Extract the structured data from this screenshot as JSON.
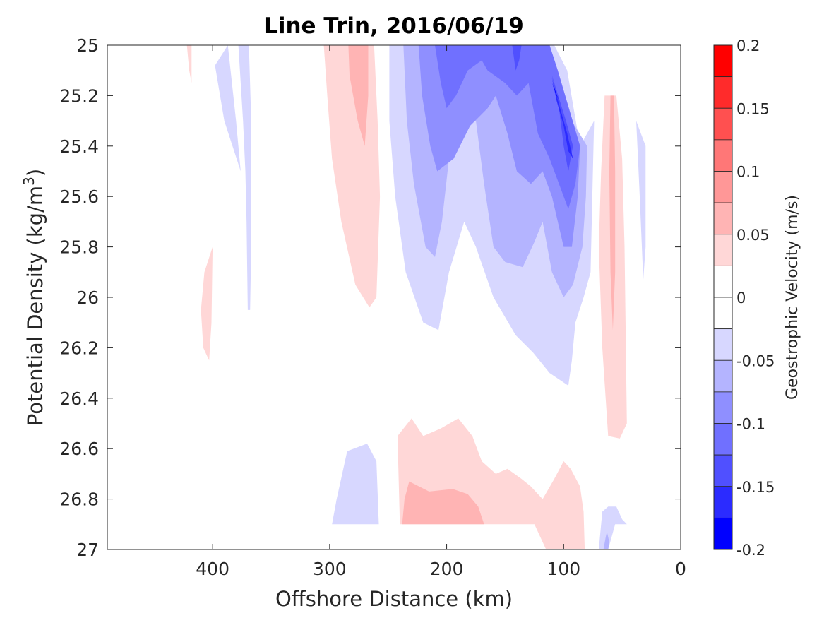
{
  "chart_data": {
    "type": "contour",
    "title": "Line Trin, 2016/06/19",
    "xlabel": "Offshore Distance (km)",
    "ylabel": "Potential Density (kg/m",
    "ylabel_sup": "3",
    "ylabel_close": ")",
    "xlim": [
      490,
      0
    ],
    "x_reversed": true,
    "ylim": [
      25,
      27
    ],
    "y_reversed": true,
    "xticks": [
      400,
      300,
      200,
      100,
      0
    ],
    "xtick_labels": [
      "400",
      "300",
      "200",
      "100",
      "0"
    ],
    "yticks": [
      25,
      25.2,
      25.4,
      25.6,
      25.8,
      26,
      26.2,
      26.4,
      26.6,
      26.8,
      27
    ],
    "ytick_labels": [
      "25",
      "25.2",
      "25.4",
      "25.6",
      "25.8",
      "26",
      "26.2",
      "26.4",
      "26.6",
      "26.8",
      "27"
    ],
    "colorbar": {
      "label": "Geostrophic Velocity (m/s)",
      "clim": [
        -0.2,
        0.2
      ],
      "ticks": [
        0.2,
        0.15,
        0.1,
        0.05,
        0,
        -0.05,
        -0.1,
        -0.15,
        -0.2
      ],
      "tick_labels": [
        "0.2",
        "0.15",
        "0.1",
        "0.05",
        "0",
        "-0.05",
        "-0.1",
        "-0.15",
        "-0.2"
      ],
      "levels": [
        {
          "from": 0.175,
          "to": 0.2,
          "color": "#ff0000"
        },
        {
          "from": 0.15,
          "to": 0.175,
          "color": "#ff2b2b"
        },
        {
          "from": 0.125,
          "to": 0.15,
          "color": "#ff5050"
        },
        {
          "from": 0.1,
          "to": 0.125,
          "color": "#ff7777"
        },
        {
          "from": 0.075,
          "to": 0.1,
          "color": "#ff9797"
        },
        {
          "from": 0.05,
          "to": 0.075,
          "color": "#ffb4b4"
        },
        {
          "from": 0.025,
          "to": 0.05,
          "color": "#ffd7d7"
        },
        {
          "from": 0,
          "to": 0.025,
          "color": "#ffffff"
        },
        {
          "from": -0.025,
          "to": 0,
          "color": "#ffffff"
        },
        {
          "from": -0.05,
          "to": -0.025,
          "color": "#d7d7ff"
        },
        {
          "from": -0.075,
          "to": -0.05,
          "color": "#b4b4ff"
        },
        {
          "from": -0.1,
          "to": -0.075,
          "color": "#8f8fff"
        },
        {
          "from": -0.125,
          "to": -0.1,
          "color": "#7070ff"
        },
        {
          "from": -0.15,
          "to": -0.125,
          "color": "#5050ff"
        },
        {
          "from": -0.175,
          "to": -0.15,
          "color": "#2b2bff"
        },
        {
          "from": -0.2,
          "to": -0.175,
          "color": "#0000ff"
        }
      ]
    },
    "regions": [
      {
        "level": 0.0375,
        "points": [
          [
            422,
            25
          ],
          [
            420,
            25.1
          ],
          [
            418,
            25.15
          ],
          [
            418,
            25
          ]
        ]
      },
      {
        "level": -0.0375,
        "points": [
          [
            387,
            25
          ],
          [
            378,
            25
          ],
          [
            374,
            25.3
          ],
          [
            372,
            25.5
          ],
          [
            371,
            25.7
          ],
          [
            370,
            26.05
          ],
          [
            368,
            26.05
          ],
          [
            367,
            25.8
          ],
          [
            367,
            25.3
          ],
          [
            369,
            25.0
          ]
        ]
      },
      {
        "level": -0.0375,
        "points": [
          [
            398,
            25.08
          ],
          [
            387,
            25.0
          ],
          [
            380,
            25.3
          ],
          [
            376,
            25.5
          ],
          [
            390,
            25.3
          ]
        ]
      },
      {
        "level": 0.0375,
        "points": [
          [
            400,
            25.8
          ],
          [
            407,
            25.9
          ],
          [
            410,
            26.05
          ],
          [
            408,
            26.2
          ],
          [
            403,
            26.25
          ],
          [
            401,
            26.1
          ]
        ]
      },
      {
        "level": 0.0375,
        "points": [
          [
            305,
            25
          ],
          [
            262,
            25
          ],
          [
            259,
            25.3
          ],
          [
            257,
            25.6
          ],
          [
            260,
            26.0
          ],
          [
            266,
            26.04
          ],
          [
            278,
            25.95
          ],
          [
            290,
            25.7
          ],
          [
            298,
            25.45
          ],
          [
            302,
            25.2
          ]
        ]
      },
      {
        "level": 0.0625,
        "points": [
          [
            284,
            25
          ],
          [
            267,
            25
          ],
          [
            267,
            25.2
          ],
          [
            270,
            25.4
          ],
          [
            276,
            25.3
          ],
          [
            283,
            25.12
          ]
        ]
      },
      {
        "level": -0.0375,
        "points": [
          [
            249,
            25
          ],
          [
            249,
            25.3
          ],
          [
            244,
            25.6
          ],
          [
            235,
            25.9
          ],
          [
            220,
            26.1
          ],
          [
            207,
            26.13
          ],
          [
            198,
            25.9
          ],
          [
            185,
            25.7
          ],
          [
            175,
            25.8
          ],
          [
            160,
            26.0
          ],
          [
            141,
            26.15
          ],
          [
            126,
            26.22
          ],
          [
            112,
            26.3
          ],
          [
            96,
            26.35
          ],
          [
            93,
            26.25
          ],
          [
            90,
            26.1
          ],
          [
            83,
            26.0
          ],
          [
            77,
            25.9
          ],
          [
            75,
            25.5
          ],
          [
            74,
            25.3
          ],
          [
            86,
            25.4
          ],
          [
            97,
            25.1
          ],
          [
            108,
            25.0
          ]
        ]
      },
      {
        "level": -0.0625,
        "points": [
          [
            237,
            25
          ],
          [
            234,
            25.3
          ],
          [
            228,
            25.55
          ],
          [
            218,
            25.8
          ],
          [
            210,
            25.84
          ],
          [
            204,
            25.7
          ],
          [
            198,
            25.45
          ],
          [
            188,
            25.3
          ],
          [
            175,
            25.3
          ],
          [
            168,
            25.55
          ],
          [
            160,
            25.8
          ],
          [
            150,
            25.86
          ],
          [
            135,
            25.88
          ],
          [
            125,
            25.78
          ],
          [
            118,
            25.7
          ],
          [
            110,
            25.9
          ],
          [
            100,
            26.0
          ],
          [
            92,
            25.95
          ],
          [
            84,
            25.8
          ],
          [
            81,
            25.6
          ],
          [
            80,
            25.4
          ],
          [
            93,
            25.3
          ],
          [
            108,
            25.1
          ],
          [
            116,
            25.0
          ]
        ]
      },
      {
        "level": -0.0875,
        "points": [
          [
            224,
            25
          ],
          [
            221,
            25.2
          ],
          [
            214,
            25.4
          ],
          [
            208,
            25.5
          ],
          [
            194,
            25.45
          ],
          [
            180,
            25.32
          ],
          [
            165,
            25.25
          ],
          [
            158,
            25.2
          ],
          [
            148,
            25.35
          ],
          [
            140,
            25.5
          ],
          [
            128,
            25.55
          ],
          [
            118,
            25.5
          ],
          [
            110,
            25.6
          ],
          [
            100,
            25.8
          ],
          [
            93,
            25.8
          ],
          [
            88,
            25.6
          ],
          [
            86,
            25.4
          ],
          [
            105,
            25.15
          ],
          [
            112,
            25.0
          ]
        ]
      },
      {
        "level": -0.1125,
        "points": [
          [
            210,
            25
          ],
          [
            205,
            25.15
          ],
          [
            200,
            25.25
          ],
          [
            192,
            25.2
          ],
          [
            182,
            25.1
          ],
          [
            170,
            25.06
          ],
          [
            165,
            25.1
          ],
          [
            150,
            25.15
          ],
          [
            140,
            25.2
          ],
          [
            130,
            25.15
          ],
          [
            122,
            25.35
          ],
          [
            112,
            25.45
          ],
          [
            104,
            25.55
          ],
          [
            96,
            25.65
          ],
          [
            90,
            25.55
          ],
          [
            86,
            25.4
          ],
          [
            105,
            25.1
          ],
          [
            112,
            25.0
          ]
        ]
      },
      {
        "level": -0.1375,
        "points": [
          [
            144,
            25
          ],
          [
            141,
            25.1
          ],
          [
            138,
            25.06
          ],
          [
            136,
            25
          ]
        ]
      },
      {
        "level": -0.1375,
        "points": [
          [
            110,
            25.12
          ],
          [
            104,
            25.25
          ],
          [
            100,
            25.4
          ],
          [
            96,
            25.5
          ],
          [
            92,
            25.4
          ],
          [
            98,
            25.3
          ]
        ]
      },
      {
        "level": -0.1625,
        "points": [
          [
            110,
            25.13
          ],
          [
            106,
            25.22
          ],
          [
            100,
            25.32
          ],
          [
            96,
            25.42
          ],
          [
            92,
            25.45
          ],
          [
            97,
            25.35
          ],
          [
            103,
            25.25
          ]
        ]
      },
      {
        "level": -0.1875,
        "points": [
          [
            110,
            25.15
          ],
          [
            106,
            25.2
          ],
          [
            104,
            25.22
          ],
          [
            108,
            25.17
          ]
        ]
      },
      {
        "level": 0.0375,
        "points": [
          [
            65,
            25.2
          ],
          [
            55,
            25.2
          ],
          [
            50,
            25.45
          ],
          [
            48,
            25.8
          ],
          [
            46,
            26.5
          ],
          [
            52,
            26.56
          ],
          [
            62,
            26.55
          ],
          [
            67,
            26.2
          ],
          [
            70,
            25.8
          ],
          [
            68,
            25.5
          ]
        ]
      },
      {
        "level": 0.0625,
        "points": [
          [
            60,
            25.2
          ],
          [
            57,
            25.2
          ],
          [
            56,
            25.5
          ],
          [
            56,
            25.9
          ],
          [
            58,
            26.13
          ],
          [
            60,
            25.9
          ],
          [
            61,
            25.5
          ]
        ]
      },
      {
        "level": -0.0375,
        "points": [
          [
            38,
            25.3
          ],
          [
            30,
            25.4
          ],
          [
            30,
            25.8
          ],
          [
            32,
            25.93
          ],
          [
            35,
            25.6
          ],
          [
            37,
            25.4
          ]
        ]
      },
      {
        "level": 0.0375,
        "points": [
          [
            242,
            26.55
          ],
          [
            230,
            26.48
          ],
          [
            220,
            26.55
          ],
          [
            205,
            26.52
          ],
          [
            190,
            26.48
          ],
          [
            178,
            26.55
          ],
          [
            170,
            26.65
          ],
          [
            158,
            26.7
          ],
          [
            148,
            26.68
          ],
          [
            136,
            26.72
          ],
          [
            128,
            26.75
          ],
          [
            118,
            26.8
          ],
          [
            108,
            26.72
          ],
          [
            100,
            26.65
          ],
          [
            94,
            26.68
          ],
          [
            86,
            26.75
          ],
          [
            83,
            26.85
          ],
          [
            82,
            27.0
          ],
          [
            115,
            27.0
          ],
          [
            125,
            26.9
          ],
          [
            240,
            26.9
          ]
        ]
      },
      {
        "level": 0.0625,
        "points": [
          [
            232,
            26.73
          ],
          [
            215,
            26.77
          ],
          [
            195,
            26.76
          ],
          [
            182,
            26.78
          ],
          [
            173,
            26.83
          ],
          [
            168,
            26.9
          ],
          [
            238,
            26.9
          ],
          [
            236,
            26.8
          ]
        ]
      },
      {
        "level": -0.0375,
        "points": [
          [
            298,
            26.9
          ],
          [
            294,
            26.8
          ],
          [
            285,
            26.61
          ],
          [
            268,
            26.58
          ],
          [
            260,
            26.65
          ],
          [
            258,
            26.9
          ]
        ]
      },
      {
        "level": -0.0375,
        "points": [
          [
            70,
            27.0
          ],
          [
            67,
            26.85
          ],
          [
            62,
            26.83
          ],
          [
            55,
            26.83
          ],
          [
            50,
            26.88
          ],
          [
            46,
            26.9
          ],
          [
            56,
            26.9
          ],
          [
            62,
            27.0
          ]
        ]
      },
      {
        "level": -0.0625,
        "points": [
          [
            66,
            27.0
          ],
          [
            64,
            26.95
          ],
          [
            63,
            26.93
          ],
          [
            61,
            26.97
          ],
          [
            62,
            27.0
          ]
        ]
      }
    ]
  }
}
